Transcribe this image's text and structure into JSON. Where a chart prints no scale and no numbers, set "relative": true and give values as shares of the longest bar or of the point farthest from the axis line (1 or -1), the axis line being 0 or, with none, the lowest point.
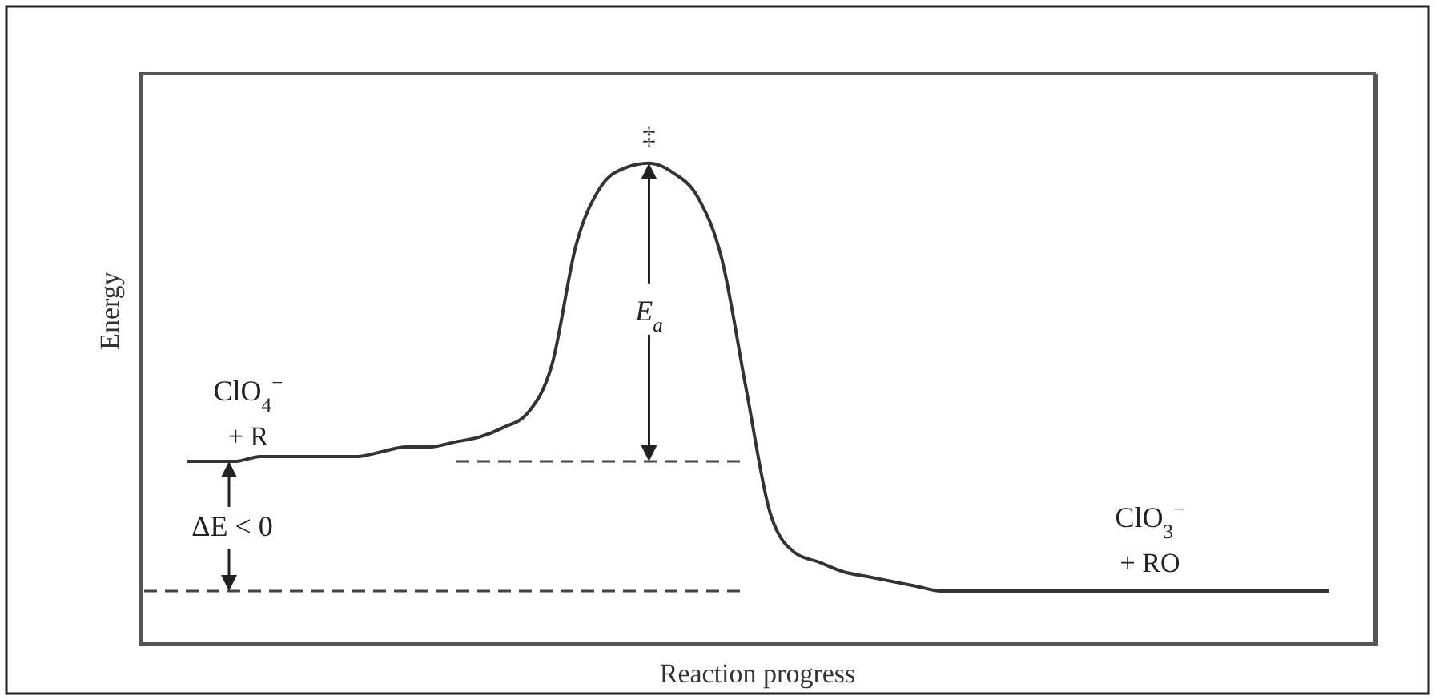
{
  "chart_data": {
    "type": "line",
    "relative": true,
    "xlabel": "Reaction progress",
    "ylabel": "Energy",
    "categories": [
      null,
      null,
      null,
      null,
      null,
      null,
      null,
      null,
      null,
      null,
      null,
      null,
      null,
      null,
      null,
      null,
      null,
      null,
      null,
      null,
      null,
      null,
      null,
      null,
      null,
      null,
      null,
      null,
      null,
      null,
      null,
      null,
      null,
      null,
      null,
      null,
      null,
      null,
      null,
      null,
      null,
      null,
      null,
      null,
      null,
      null,
      null,
      null
    ],
    "series": [
      {
        "color": "#333333",
        "values": [
          0.38,
          0.38,
          0.38,
          0.39,
          0.39,
          0.39,
          0.39,
          0.39,
          0.4,
          0.41,
          0.41,
          0.42,
          0.43,
          0.45,
          0.48,
          0.58,
          0.83,
          0.95,
          0.99,
          1,
          0.98,
          0.93,
          0.8,
          0.53,
          0.27,
          0.19,
          0.17,
          0.15,
          0.14,
          0.13,
          0.12,
          0.11,
          0.11,
          0.11,
          0.11,
          0.11,
          0.11,
          0.11,
          0.11,
          0.11,
          0.11,
          0.11,
          0.11,
          0.11,
          0.11,
          0.11,
          0.11,
          0.11
        ]
      }
    ],
    "ref_lines": [
      {
        "axis": "y",
        "value": 0.38,
        "color": "#444444",
        "line_style": "dashed"
      },
      {
        "axis": "y",
        "value": 0.11,
        "color": "#444444",
        "line_style": "dashed"
      }
    ],
    "annotations": [
      "‡",
      "E$_{a}$",
      "ClO$_{4}$$^{−}$",
      "+ R",
      "ΔE < 0",
      "ClO$_{3}$$^{−}$",
      "+ RO"
    ],
    "marker": "none",
    "line_style": "solid"
  }
}
